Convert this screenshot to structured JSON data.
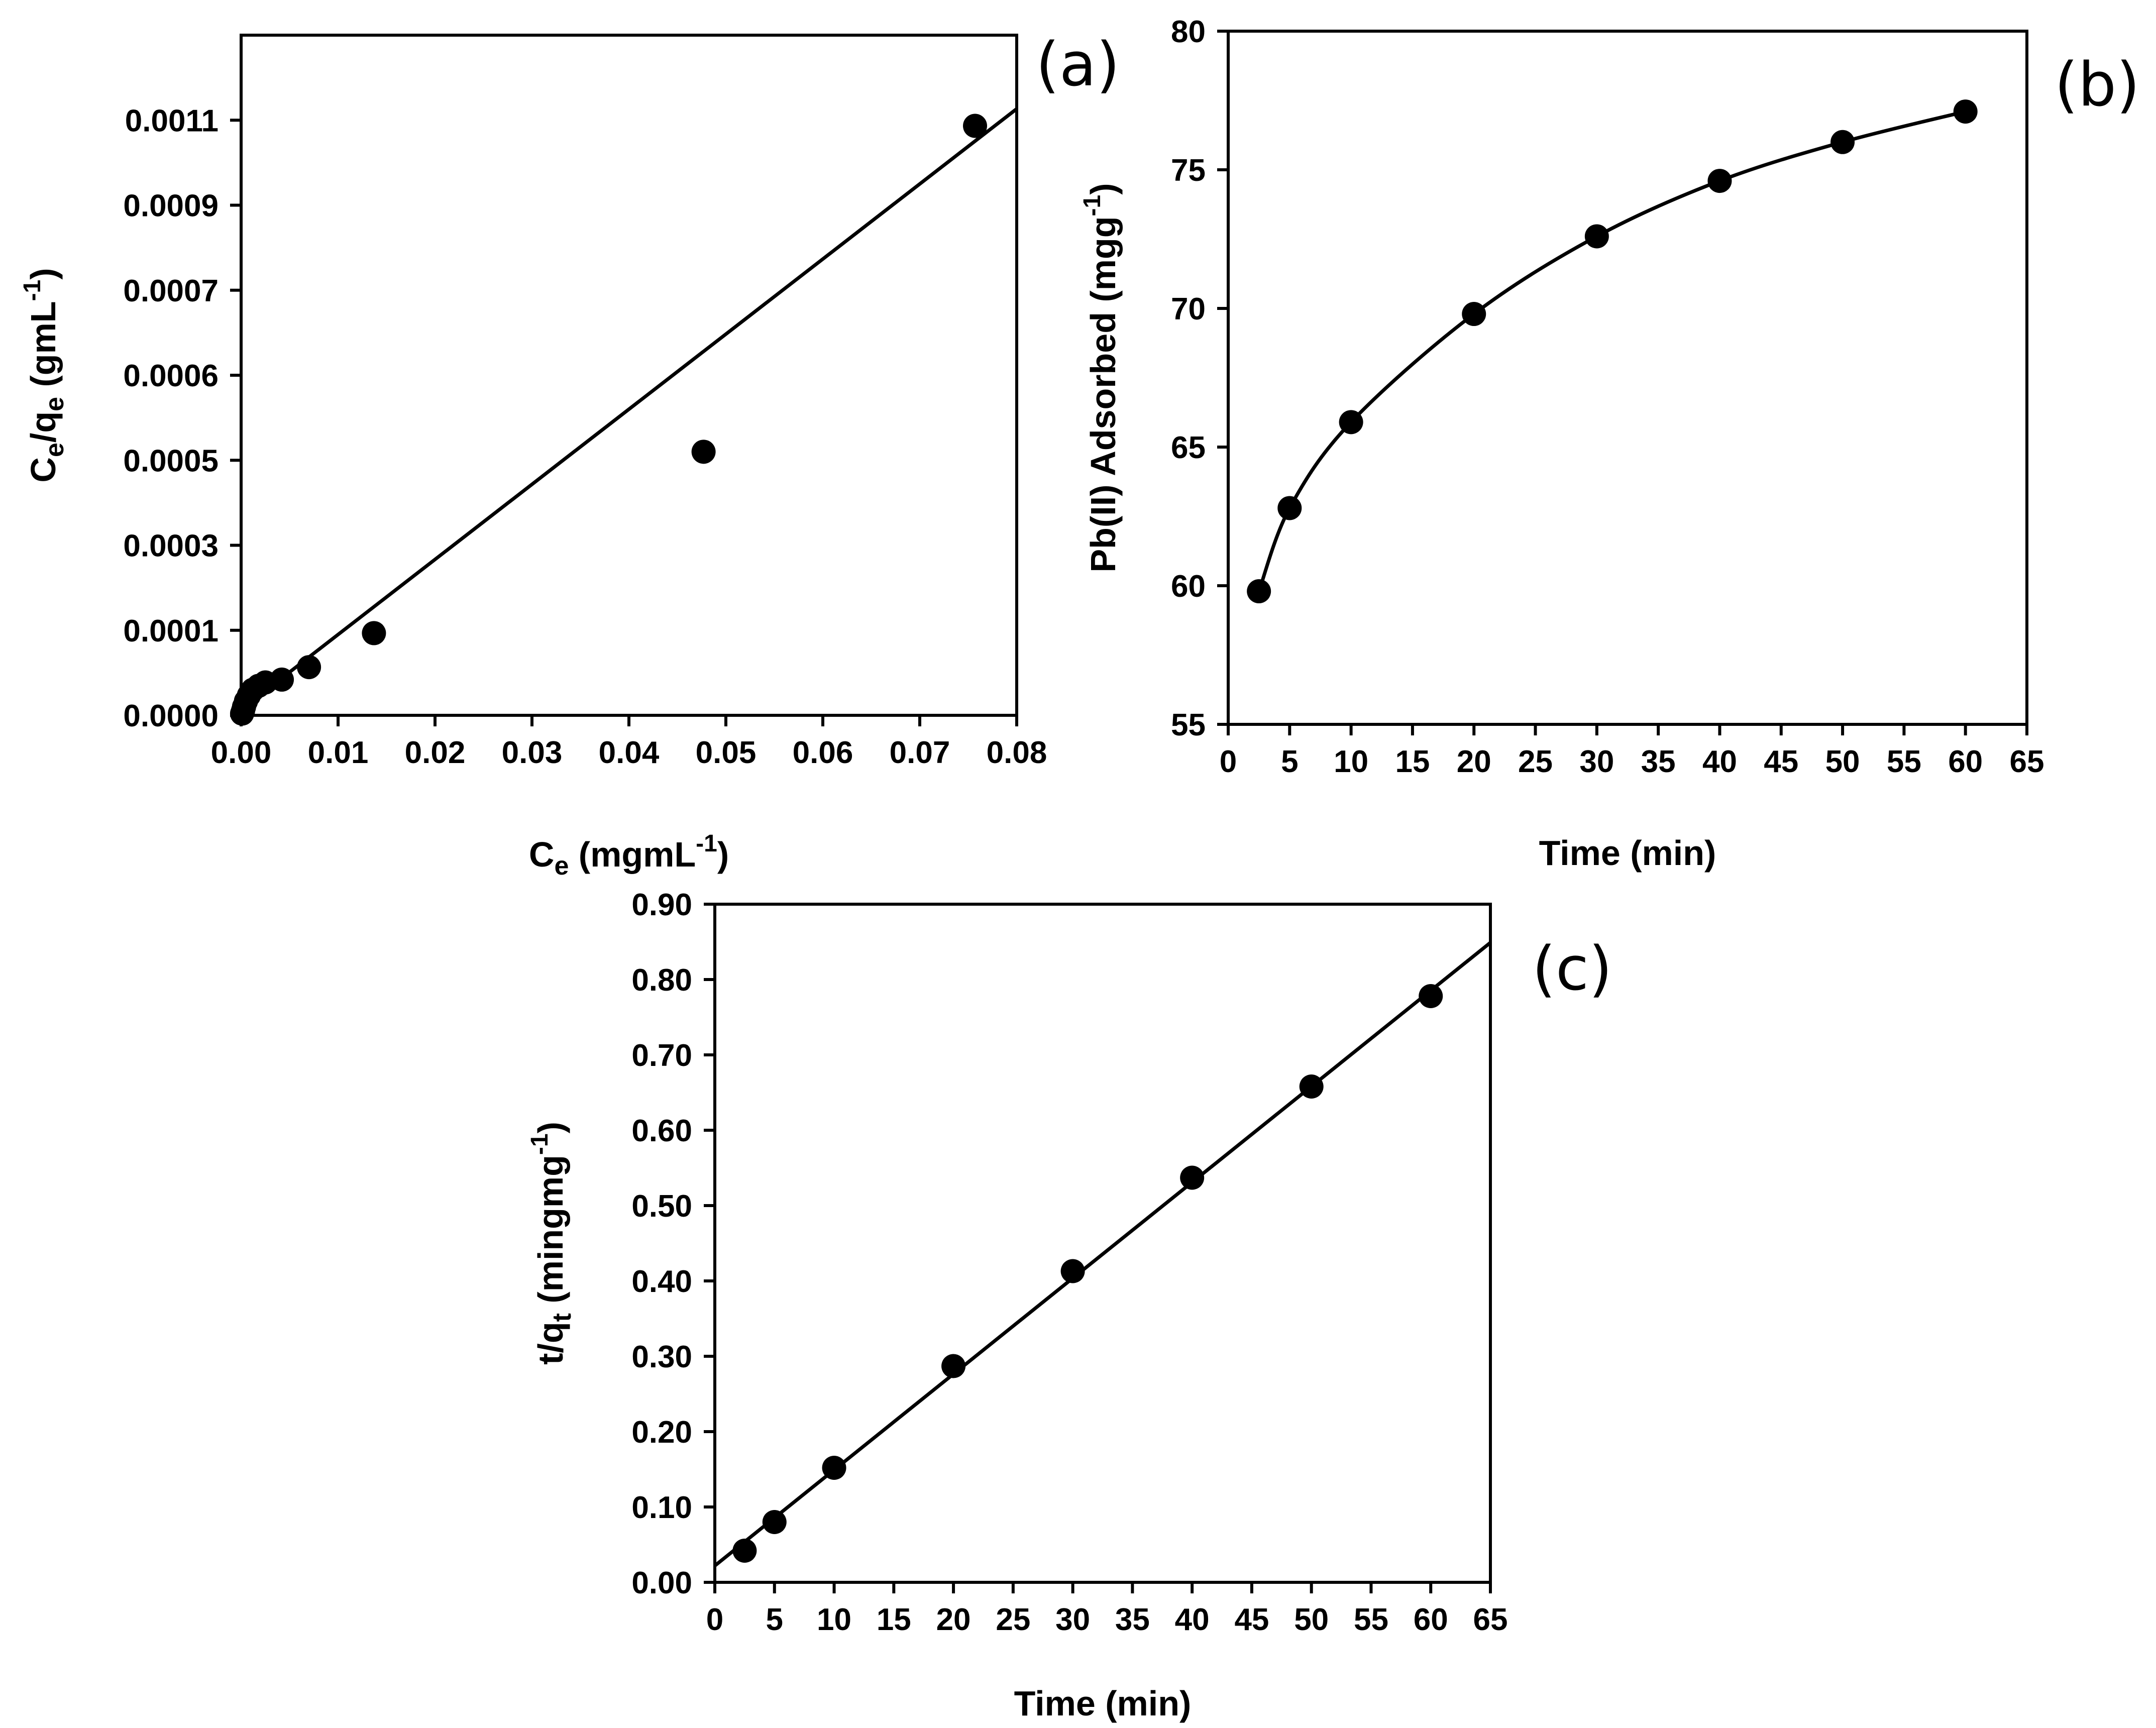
{
  "chart_data": [
    {
      "panel": "(a)",
      "type": "scatter",
      "xlabel": "Ce (mgmL-1)",
      "ylabel": "Ce/qe (gmL-1)",
      "xlim": [
        0,
        0.08
      ],
      "ylim": [
        0,
        0.0012
      ],
      "x_ticks": [
        0.0,
        0.01,
        0.02,
        0.03,
        0.04,
        0.05,
        0.06,
        0.07,
        0.08
      ],
      "x_tick_labels": [
        "0.00",
        "0.01",
        "0.02",
        "0.03",
        "0.04",
        "0.05",
        "0.06",
        "0.07",
        "0.08"
      ],
      "y_ticks": [
        0.0,
        0.00015,
        0.0003,
        0.00045,
        0.0006,
        0.00075,
        0.0009,
        0.00105
      ],
      "y_tick_labels": [
        "0.0000",
        "0.0001",
        "0.0003",
        "0.0005",
        "0.0006",
        "0.0007",
        "0.0009",
        "0.0011"
      ],
      "points": [
        {
          "x": 0.0001,
          "y": 3e-06
        },
        {
          "x": 0.0002,
          "y": 8e-06
        },
        {
          "x": 0.0003,
          "y": 1.5e-05
        },
        {
          "x": 0.0005,
          "y": 2.5e-05
        },
        {
          "x": 0.0008,
          "y": 3.5e-05
        },
        {
          "x": 0.0012,
          "y": 4.5e-05
        },
        {
          "x": 0.0018,
          "y": 5.2e-05
        },
        {
          "x": 0.0025,
          "y": 5.8e-05
        },
        {
          "x": 0.0042,
          "y": 6.3e-05
        },
        {
          "x": 0.007,
          "y": 8.5e-05
        },
        {
          "x": 0.0137,
          "y": 0.000145
        },
        {
          "x": 0.0477,
          "y": 0.000465
        },
        {
          "x": 0.0757,
          "y": 0.00104
        }
      ],
      "fit_line": {
        "x": [
          0,
          0.08
        ],
        "y": [
          1e-05,
          0.00107
        ]
      }
    },
    {
      "panel": "(b)",
      "type": "scatter",
      "xlabel": "Time (min)",
      "ylabel": "Pb(II) Adsorbed (mgg-1)",
      "xlim": [
        0,
        65
      ],
      "ylim": [
        55,
        80
      ],
      "x_ticks": [
        0,
        5,
        10,
        15,
        20,
        25,
        30,
        35,
        40,
        45,
        50,
        55,
        60,
        65
      ],
      "y_ticks": [
        55,
        60,
        65,
        70,
        75,
        80
      ],
      "points": [
        {
          "x": 2.5,
          "y": 59.8
        },
        {
          "x": 5,
          "y": 62.8
        },
        {
          "x": 10,
          "y": 65.9
        },
        {
          "x": 20,
          "y": 69.8
        },
        {
          "x": 30,
          "y": 72.6
        },
        {
          "x": 40,
          "y": 74.6
        },
        {
          "x": 50,
          "y": 76.0
        },
        {
          "x": 60,
          "y": 77.1
        }
      ]
    },
    {
      "panel": "(c)",
      "type": "scatter",
      "xlabel": "Time (min)",
      "ylabel": "t/qt (mingmg-1)",
      "xlim": [
        0,
        65
      ],
      "ylim": [
        0,
        0.9
      ],
      "x_ticks": [
        0,
        5,
        10,
        15,
        20,
        25,
        30,
        35,
        40,
        45,
        50,
        55,
        60,
        65
      ],
      "y_ticks": [
        0.0,
        0.1,
        0.2,
        0.3,
        0.4,
        0.5,
        0.6,
        0.7,
        0.8,
        0.9
      ],
      "y_tick_labels": [
        "0.00",
        "0.10",
        "0.20",
        "0.30",
        "0.40",
        "0.50",
        "0.60",
        "0.70",
        "0.80",
        "0.90"
      ],
      "points": [
        {
          "x": 2.5,
          "y": 0.042
        },
        {
          "x": 5,
          "y": 0.08
        },
        {
          "x": 10,
          "y": 0.152
        },
        {
          "x": 20,
          "y": 0.287
        },
        {
          "x": 30,
          "y": 0.413
        },
        {
          "x": 40,
          "y": 0.537
        },
        {
          "x": 50,
          "y": 0.658
        },
        {
          "x": 60,
          "y": 0.778
        }
      ],
      "fit_line": {
        "x": [
          0,
          65
        ],
        "y": [
          0.022,
          0.849
        ]
      }
    }
  ],
  "labels": {
    "a": {
      "panel": "(a)",
      "x_main": "C",
      "x_sub": "e",
      "x_unit": " (mgmL",
      "x_sup": "-1",
      "x_close": ")",
      "y_main": "C",
      "y_sub1": "e",
      "y_mid": "/q",
      "y_sub2": "e",
      "y_unit": " (gmL",
      "y_sup": "-1",
      "y_close": ")"
    },
    "b": {
      "panel": "(b)",
      "x_label": "Time (min)",
      "y_main": "Pb(II) Adsorbed (mgg",
      "y_sup": "-1",
      "y_close": ")"
    },
    "c": {
      "panel": "(c)",
      "x_label": "Time (min)",
      "y_main": "t/q",
      "y_sub": "t",
      "y_unit": " (mingmg",
      "y_sup": "-1",
      "y_close": ")"
    }
  }
}
